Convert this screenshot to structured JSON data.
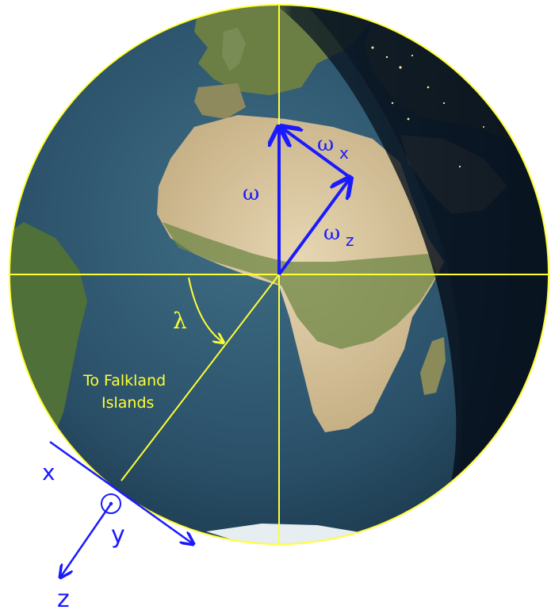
{
  "labels": {
    "omega": "ω",
    "omega_x": "ω",
    "omega_x_sub": "x",
    "omega_z": "ω",
    "omega_z_sub": "z",
    "lambda": "λ",
    "falkland_line1": "To Falkland",
    "falkland_line2": "Islands",
    "axis_x": "x",
    "axis_y": "y",
    "axis_z": "z"
  },
  "colors": {
    "vector_blue": "#1a1aff",
    "guide_yellow": "#ffff33",
    "ocean_blue": "#2f5a73",
    "land_tan": "#c8b38a",
    "land_green": "#5c7a3a",
    "night_shadow": "#0c1a2a"
  }
}
